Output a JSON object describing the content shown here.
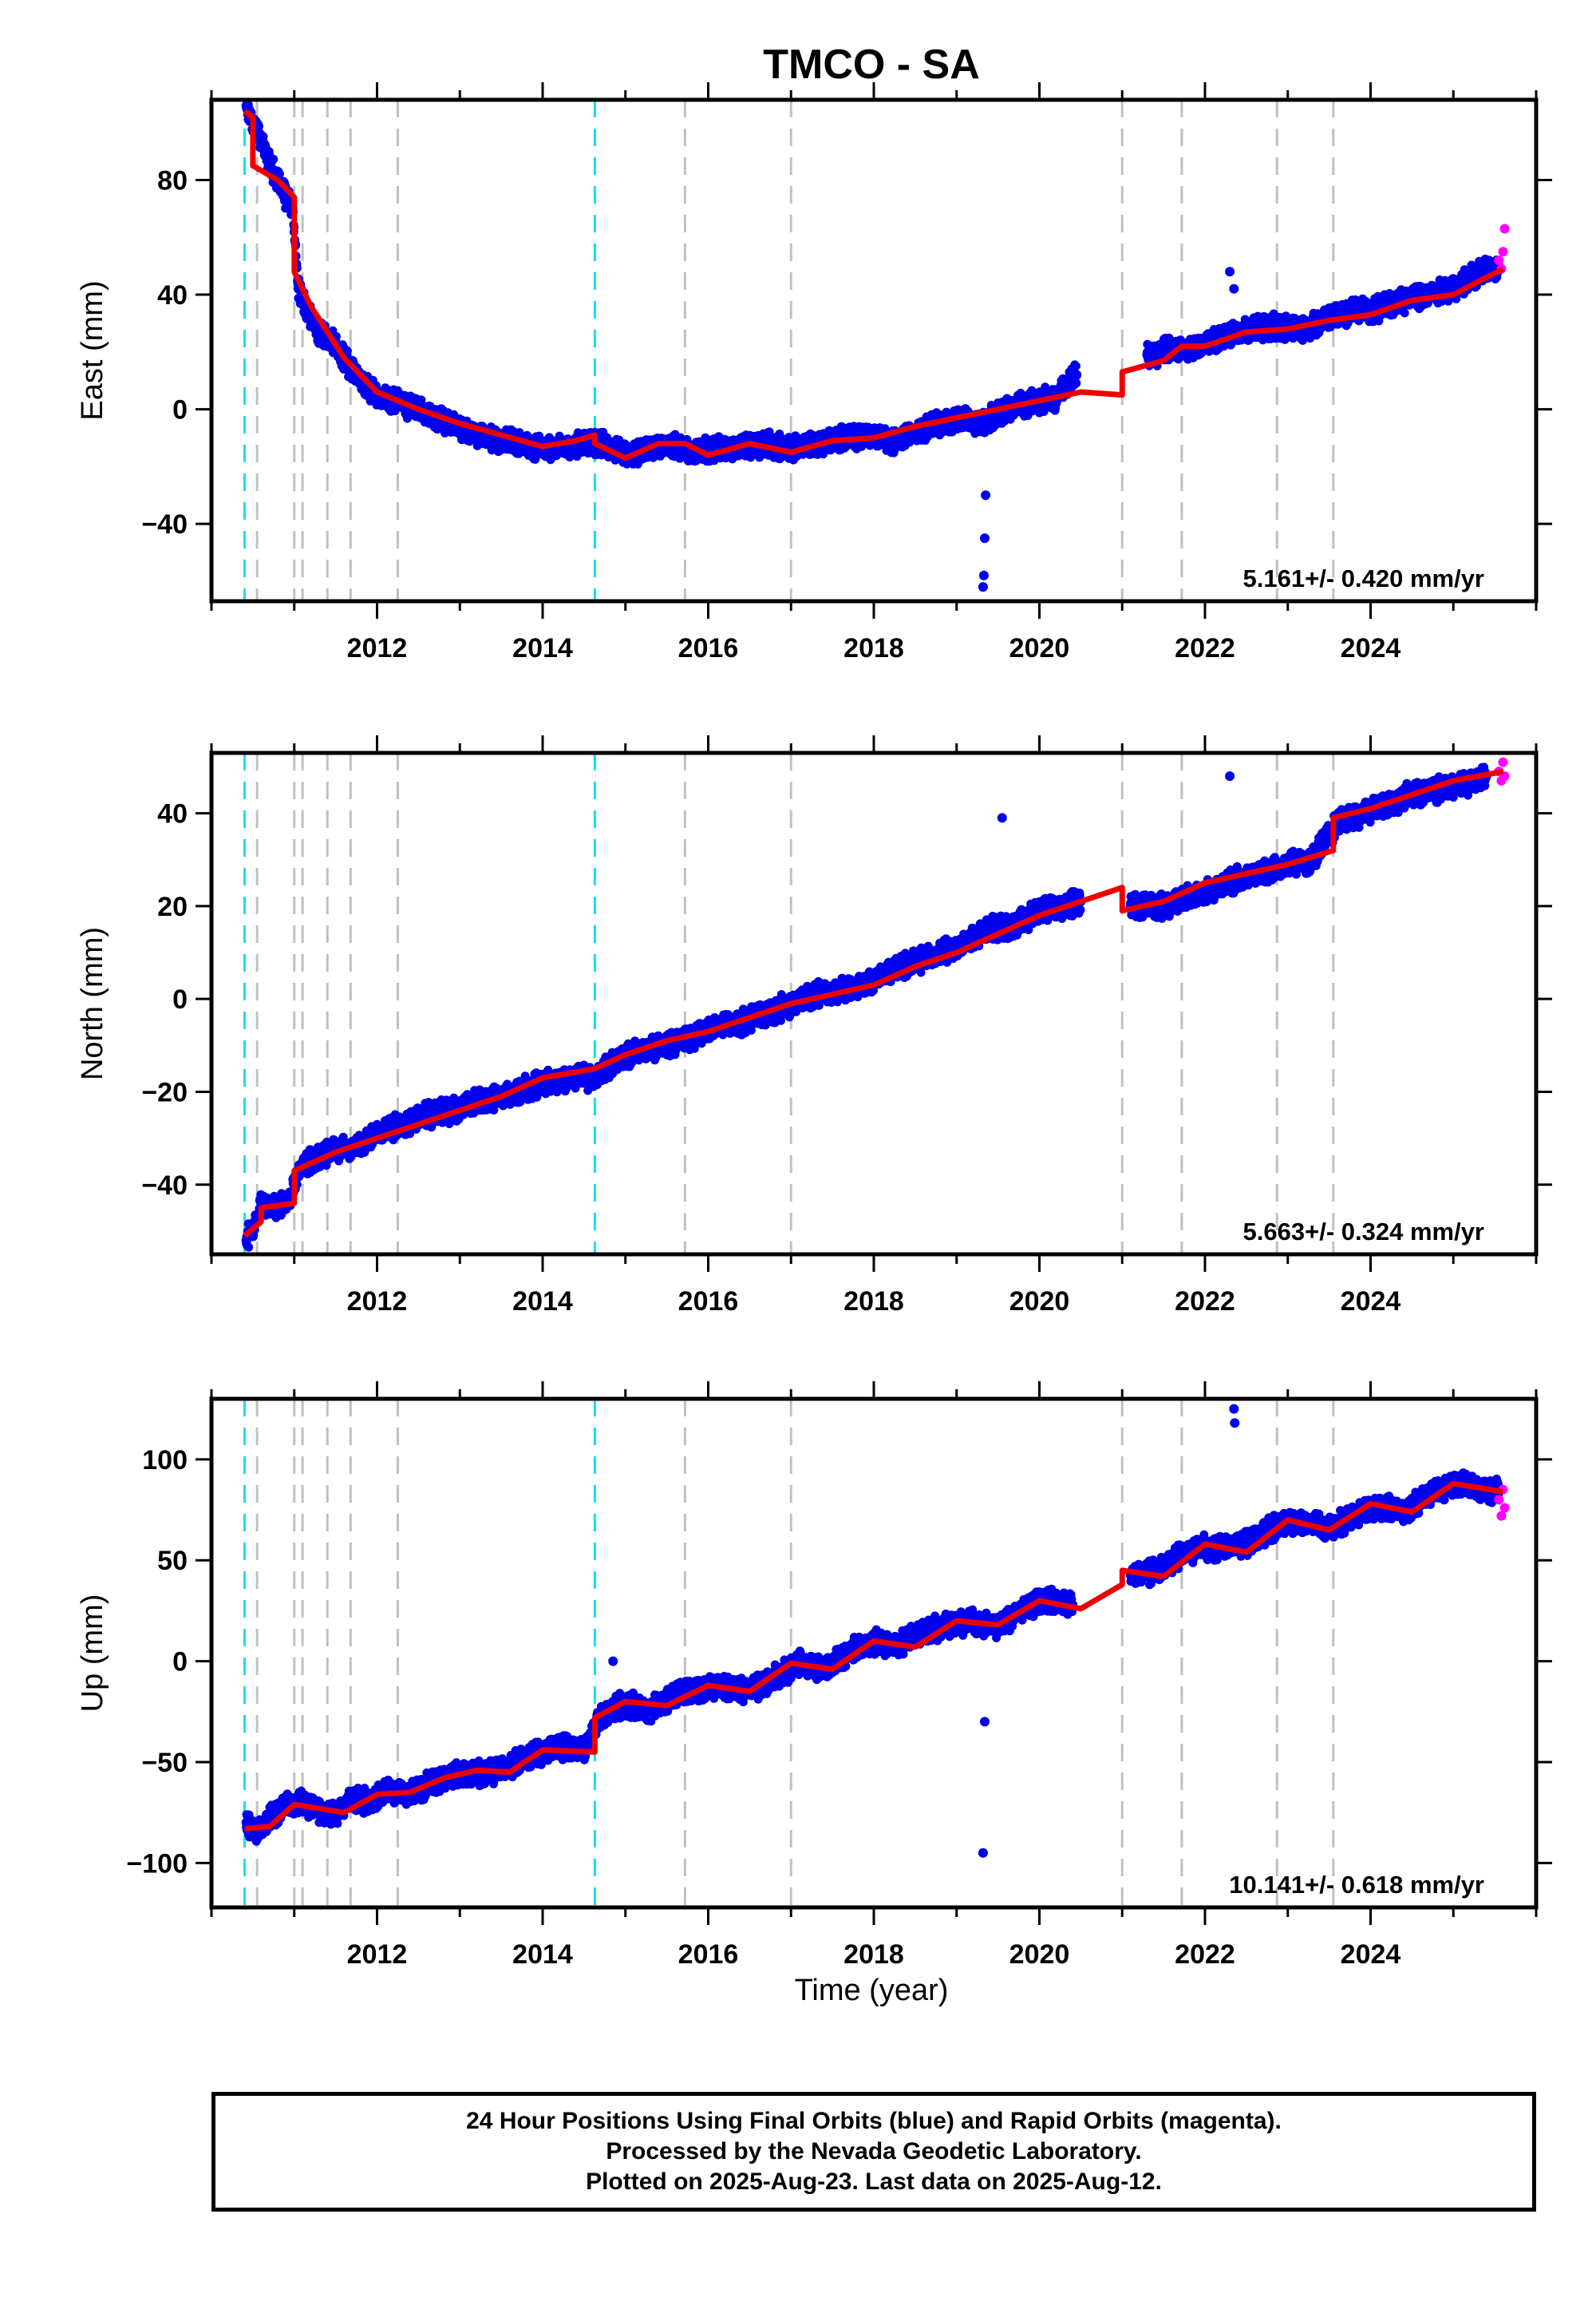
{
  "title": "TMCO - SA",
  "xlabel": "Time (year)",
  "caption": [
    "24 Hour Positions Using Final Orbits (blue) and Rapid Orbits (magenta).",
    "Processed by the Nevada Geodetic Laboratory.",
    "Plotted on 2025-Aug-23. Last data on 2025-Aug-12."
  ],
  "colors": {
    "final_orbits": "#0000ee",
    "rapid_orbits": "#ff00ff",
    "model": "#ee0000",
    "cyan_events": "#00e5ee",
    "gray_events": "#c0c0c0"
  },
  "chart_data": [
    {
      "type": "scatter",
      "ylabel": "East (mm)",
      "rate": "5.161+/- 0.420 mm/yr",
      "xlim": [
        2010.0,
        2026.0
      ],
      "ylim": [
        -67,
        108
      ],
      "yticks": [
        80,
        40,
        0,
        -40
      ],
      "xticks": [
        2012,
        2014,
        2016,
        2018,
        2020,
        2022,
        2024
      ],
      "cyan_events": [
        2010.4,
        2014.63
      ],
      "gray_events": [
        2010.55,
        2011.0,
        2011.1,
        2011.4,
        2011.68,
        2012.25,
        2015.72,
        2017.0,
        2021.0,
        2021.72,
        2022.87,
        2023.55
      ],
      "model": {
        "x": [
          2010.4,
          2010.5,
          2010.5,
          2010.8,
          2011.0,
          2011.0,
          2011.2,
          2011.6,
          2012.0,
          2012.5,
          2013.0,
          2013.5,
          2014.0,
          2014.4,
          2014.63,
          2014.63,
          2015.0,
          2015.4,
          2015.72,
          2016.0,
          2016.5,
          2017.0,
          2017.5,
          2018.0,
          2018.5,
          2019.0,
          2019.5,
          2020.0,
          2020.5,
          2021.0,
          2021.0,
          2021.5,
          2021.72,
          2022.0,
          2022.5,
          2023.0,
          2023.5,
          2024.0,
          2024.5,
          2025.0,
          2025.6
        ],
        "y": [
          104,
          102,
          85,
          80,
          74,
          48,
          36,
          18,
          6,
          0,
          -5,
          -9,
          -13,
          -11,
          -9,
          -12,
          -17,
          -12,
          -12,
          -16,
          -12,
          -15,
          -11,
          -10,
          -6,
          -3,
          0,
          3,
          6,
          5,
          13,
          17,
          22,
          22,
          27,
          28,
          31,
          33,
          38,
          40,
          49
        ]
      },
      "final_orbits": {
        "x": [
          2010.42,
          2010.5,
          2010.6,
          2010.7,
          2010.8,
          2010.9,
          2010.98,
          2011.05,
          2011.15,
          2011.3,
          2011.45,
          2011.6,
          2011.8,
          2012.0,
          2012.2,
          2012.5,
          2012.8,
          2013.1,
          2013.4,
          2013.7,
          2014.0,
          2014.3,
          2014.55,
          2014.8,
          2015.0,
          2015.3,
          2015.6,
          2015.9,
          2016.1,
          2016.4,
          2016.7,
          2017.0,
          2017.3,
          2017.6,
          2017.9,
          2018.2,
          2018.5,
          2018.8,
          2019.1,
          2019.3,
          2019.6,
          2019.9,
          2020.2,
          2020.45,
          2021.3,
          2021.6,
          2021.9,
          2022.1,
          2022.35,
          2022.6,
          2022.9,
          2023.2,
          2023.5,
          2023.8,
          2024.1,
          2024.4,
          2024.7,
          2025.0,
          2025.3,
          2025.55,
          2019.32,
          2019.33,
          2019.34,
          2019.35,
          2022.3,
          2022.35
        ],
        "y": [
          106,
          100,
          94,
          86,
          80,
          74,
          70,
          42,
          34,
          27,
          24,
          18,
          10,
          5,
          3,
          0,
          -4,
          -8,
          -10,
          -12,
          -14,
          -13,
          -11,
          -13,
          -16,
          -13,
          -13,
          -15,
          -14,
          -13,
          -12,
          -14,
          -12,
          -10,
          -9,
          -11,
          -8,
          -5,
          -3,
          -5,
          0,
          2,
          4,
          12,
          19,
          21,
          21,
          24,
          27,
          28,
          29,
          28,
          32,
          34,
          35,
          38,
          40,
          42,
          47,
          50,
          -62,
          -58,
          -45,
          -30,
          48,
          42
        ]
      },
      "rapid_orbits": {
        "x": [
          2025.55,
          2025.58,
          2025.6,
          2025.62
        ],
        "y": [
          52,
          49,
          55,
          63
        ]
      }
    },
    {
      "type": "scatter",
      "ylabel": "North (mm)",
      "rate": "5.663+/- 0.324 mm/yr",
      "xlim": [
        2010.0,
        2026.0
      ],
      "ylim": [
        -55,
        53
      ],
      "yticks": [
        40,
        20,
        0,
        -20,
        -40
      ],
      "xticks": [
        2012,
        2014,
        2016,
        2018,
        2020,
        2022,
        2024
      ],
      "cyan_events": [
        2010.4,
        2014.63
      ],
      "gray_events": [
        2010.55,
        2011.0,
        2011.1,
        2011.4,
        2011.68,
        2012.25,
        2015.72,
        2017.0,
        2021.0,
        2021.72,
        2022.87,
        2023.55
      ],
      "model": {
        "x": [
          2010.4,
          2010.6,
          2010.6,
          2011.0,
          2011.0,
          2011.5,
          2012.0,
          2012.5,
          2013.0,
          2013.5,
          2014.0,
          2014.63,
          2015.0,
          2015.5,
          2016.0,
          2016.5,
          2017.0,
          2017.5,
          2018.0,
          2018.5,
          2019.0,
          2019.5,
          2020.0,
          2020.5,
          2021.0,
          2021.0,
          2021.5,
          2022.0,
          2022.5,
          2023.0,
          2023.55,
          2023.55,
          2024.0,
          2024.5,
          2025.0,
          2025.6
        ],
        "y": [
          -51,
          -48,
          -45,
          -44,
          -37,
          -33,
          -30,
          -27,
          -24,
          -21,
          -17,
          -15,
          -12,
          -9,
          -7,
          -4,
          -1,
          1,
          3,
          7,
          10,
          14,
          18,
          21,
          24,
          19,
          21,
          25,
          27,
          29,
          32,
          39,
          41,
          44,
          47,
          49
        ]
      },
      "final_orbits": {
        "x": [
          2010.42,
          2010.5,
          2010.6,
          2010.8,
          2010.95,
          2011.05,
          2011.2,
          2011.4,
          2011.6,
          2011.8,
          2012.0,
          2012.3,
          2012.6,
          2012.9,
          2013.2,
          2013.5,
          2013.8,
          2014.1,
          2014.4,
          2014.6,
          2014.9,
          2015.2,
          2015.5,
          2015.8,
          2016.1,
          2016.4,
          2016.7,
          2017.0,
          2017.3,
          2017.6,
          2017.9,
          2018.2,
          2018.5,
          2018.8,
          2019.1,
          2019.4,
          2019.7,
          2020.0,
          2020.3,
          2020.5,
          2021.1,
          2021.5,
          2021.8,
          2022.1,
          2022.4,
          2022.7,
          2023.0,
          2023.3,
          2023.6,
          2023.9,
          2024.2,
          2024.5,
          2024.8,
          2025.1,
          2025.4,
          2019.55,
          2022.3
        ],
        "y": [
          -52,
          -49,
          -44,
          -45,
          -43,
          -37,
          -35,
          -33,
          -32,
          -31,
          -29,
          -27,
          -25,
          -24,
          -22,
          -21,
          -19,
          -18,
          -17,
          -17,
          -13,
          -11,
          -10,
          -8,
          -6,
          -5,
          -3,
          -1,
          1,
          2,
          3,
          6,
          8,
          10,
          12,
          15,
          16,
          19,
          20,
          21,
          20,
          20,
          22,
          24,
          26,
          27,
          29,
          30,
          38,
          40,
          42,
          44,
          45,
          46,
          48,
          39,
          48
        ]
      },
      "rapid_orbits": {
        "x": [
          2025.55,
          2025.58,
          2025.6,
          2025.62
        ],
        "y": [
          49,
          47,
          51,
          48
        ]
      }
    },
    {
      "type": "scatter",
      "ylabel": "Up (mm)",
      "rate": "10.141+/- 0.618 mm/yr",
      "xlim": [
        2010.0,
        2026.0
      ],
      "ylim": [
        -122,
        130
      ],
      "yticks": [
        100,
        50,
        0,
        -50,
        -100
      ],
      "xticks": [
        2012,
        2014,
        2016,
        2018,
        2020,
        2022,
        2024
      ],
      "cyan_events": [
        2010.4,
        2014.63
      ],
      "gray_events": [
        2010.55,
        2011.0,
        2011.1,
        2011.4,
        2011.68,
        2012.25,
        2015.72,
        2017.0,
        2021.0,
        2021.72,
        2022.87,
        2023.55
      ],
      "model": {
        "x": [
          2010.4,
          2010.7,
          2011.0,
          2011.3,
          2011.6,
          2012.0,
          2012.4,
          2012.8,
          2013.2,
          2013.6,
          2014.0,
          2014.63,
          2014.63,
          2015.0,
          2015.5,
          2016.0,
          2016.5,
          2017.0,
          2017.5,
          2018.0,
          2018.5,
          2019.0,
          2019.5,
          2020.0,
          2020.5,
          2021.0,
          2021.0,
          2021.5,
          2022.0,
          2022.5,
          2023.0,
          2023.5,
          2024.0,
          2024.5,
          2025.0,
          2025.6
        ],
        "y": [
          -83,
          -82,
          -71,
          -73,
          -75,
          -66,
          -65,
          -58,
          -54,
          -55,
          -44,
          -45,
          -28,
          -20,
          -22,
          -12,
          -15,
          -1,
          -4,
          10,
          7,
          20,
          18,
          30,
          26,
          38,
          45,
          42,
          58,
          54,
          70,
          65,
          78,
          74,
          88,
          84
        ]
      },
      "final_orbits": {
        "x": [
          2010.42,
          2010.55,
          2010.7,
          2010.9,
          2011.1,
          2011.3,
          2011.5,
          2011.7,
          2011.9,
          2012.1,
          2012.4,
          2012.7,
          2013.0,
          2013.3,
          2013.6,
          2013.9,
          2014.2,
          2014.5,
          2014.7,
          2015.0,
          2015.3,
          2015.6,
          2015.9,
          2016.2,
          2016.5,
          2016.8,
          2017.1,
          2017.4,
          2017.7,
          2018.0,
          2018.3,
          2018.6,
          2018.9,
          2019.2,
          2019.5,
          2019.8,
          2020.1,
          2020.4,
          2021.1,
          2021.4,
          2021.7,
          2022.0,
          2022.3,
          2022.6,
          2022.9,
          2023.2,
          2023.5,
          2023.8,
          2024.1,
          2024.4,
          2024.7,
          2025.0,
          2025.3,
          2025.55,
          2019.32,
          2019.34,
          2022.35,
          2022.36,
          2014.85
        ],
        "y": [
          -80,
          -85,
          -78,
          -72,
          -70,
          -74,
          -76,
          -68,
          -70,
          -64,
          -66,
          -60,
          -56,
          -56,
          -52,
          -46,
          -42,
          -44,
          -28,
          -21,
          -24,
          -17,
          -14,
          -12,
          -15,
          -8,
          -1,
          -4,
          4,
          10,
          8,
          14,
          18,
          20,
          17,
          26,
          30,
          28,
          43,
          45,
          52,
          57,
          56,
          60,
          68,
          70,
          65,
          72,
          77,
          74,
          82,
          88,
          86,
          84,
          -95,
          -30,
          125,
          118,
          0
        ]
      },
      "rapid_orbits": {
        "x": [
          2025.55,
          2025.58,
          2025.6,
          2025.62
        ],
        "y": [
          80,
          72,
          85,
          76
        ]
      }
    }
  ]
}
